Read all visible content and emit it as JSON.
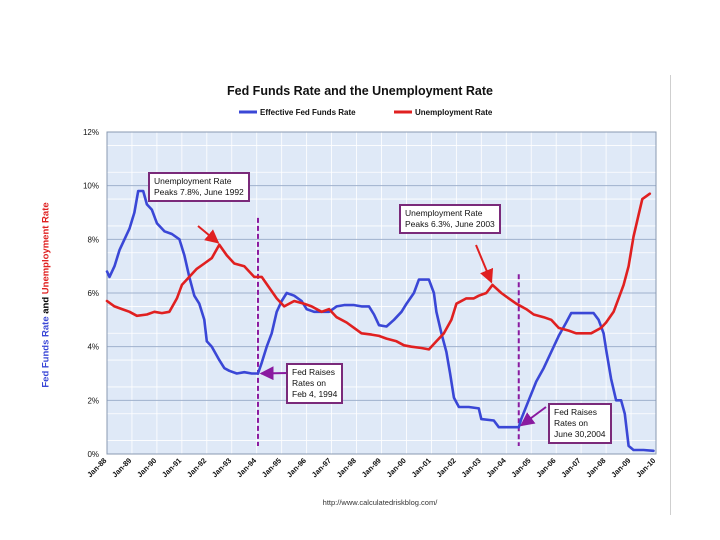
{
  "chart_data": {
    "type": "line",
    "title": "Fed Funds Rate and the Unemployment Rate",
    "ylabel": "Fed Funds Rate and Unemployment Rate",
    "ylabel_parts": [
      "Fed Funds Rate",
      " and ",
      "Unemployment Rate"
    ],
    "source": "http://www.calculatedriskblog.com/",
    "ylim": [
      0,
      12
    ],
    "xlim": [
      1988.0,
      2010.0
    ],
    "yticks": [
      {
        "value": 0,
        "label": "0%"
      },
      {
        "value": 2,
        "label": "2%"
      },
      {
        "value": 4,
        "label": "4%"
      },
      {
        "value": 6,
        "label": "6%"
      },
      {
        "value": 8,
        "label": "8%"
      },
      {
        "value": 10,
        "label": "10%"
      },
      {
        "value": 12,
        "label": "12%"
      }
    ],
    "xticks": [
      {
        "value": 1988,
        "label": "Jan-88"
      },
      {
        "value": 1989,
        "label": "Jan-89"
      },
      {
        "value": 1990,
        "label": "Jan-90"
      },
      {
        "value": 1991,
        "label": "Jan-91"
      },
      {
        "value": 1992,
        "label": "Jan-92"
      },
      {
        "value": 1993,
        "label": "Jan-93"
      },
      {
        "value": 1994,
        "label": "Jan-94"
      },
      {
        "value": 1995,
        "label": "Jan-95"
      },
      {
        "value": 1996,
        "label": "Jan-96"
      },
      {
        "value": 1997,
        "label": "Jan-97"
      },
      {
        "value": 1998,
        "label": "Jan-98"
      },
      {
        "value": 1999,
        "label": "Jan-99"
      },
      {
        "value": 2000,
        "label": "Jan-00"
      },
      {
        "value": 2001,
        "label": "Jan-01"
      },
      {
        "value": 2002,
        "label": "Jan-02"
      },
      {
        "value": 2003,
        "label": "Jan-03"
      },
      {
        "value": 2004,
        "label": "Jan-04"
      },
      {
        "value": 2005,
        "label": "Jan-05"
      },
      {
        "value": 2006,
        "label": "Jan-06"
      },
      {
        "value": 2007,
        "label": "Jan-07"
      },
      {
        "value": 2008,
        "label": "Jan-08"
      },
      {
        "value": 2009,
        "label": "Jan-09"
      },
      {
        "value": 2010,
        "label": "Jan-10"
      }
    ],
    "series": [
      {
        "name": "Effective Fed Funds Rate",
        "color": "#3a47d6",
        "points": [
          [
            1988.0,
            6.8
          ],
          [
            1988.1,
            6.6
          ],
          [
            1988.3,
            7.0
          ],
          [
            1988.5,
            7.6
          ],
          [
            1988.7,
            8.0
          ],
          [
            1988.9,
            8.4
          ],
          [
            1989.1,
            9.0
          ],
          [
            1989.25,
            9.8
          ],
          [
            1989.45,
            9.8
          ],
          [
            1989.6,
            9.3
          ],
          [
            1989.8,
            9.1
          ],
          [
            1990.0,
            8.6
          ],
          [
            1990.3,
            8.3
          ],
          [
            1990.6,
            8.2
          ],
          [
            1990.9,
            8.0
          ],
          [
            1991.1,
            7.4
          ],
          [
            1991.3,
            6.6
          ],
          [
            1991.5,
            5.9
          ],
          [
            1991.7,
            5.6
          ],
          [
            1991.9,
            5.0
          ],
          [
            1992.0,
            4.2
          ],
          [
            1992.2,
            4.0
          ],
          [
            1992.5,
            3.5
          ],
          [
            1992.7,
            3.2
          ],
          [
            1992.9,
            3.1
          ],
          [
            1993.2,
            3.0
          ],
          [
            1993.5,
            3.05
          ],
          [
            1993.8,
            3.0
          ],
          [
            1994.05,
            3.0
          ],
          [
            1994.2,
            3.4
          ],
          [
            1994.4,
            4.0
          ],
          [
            1994.6,
            4.5
          ],
          [
            1994.8,
            5.3
          ],
          [
            1995.0,
            5.7
          ],
          [
            1995.2,
            6.0
          ],
          [
            1995.5,
            5.9
          ],
          [
            1995.8,
            5.7
          ],
          [
            1996.0,
            5.4
          ],
          [
            1996.3,
            5.3
          ],
          [
            1996.6,
            5.3
          ],
          [
            1996.9,
            5.3
          ],
          [
            1997.2,
            5.5
          ],
          [
            1997.5,
            5.55
          ],
          [
            1997.9,
            5.55
          ],
          [
            1998.2,
            5.5
          ],
          [
            1998.5,
            5.5
          ],
          [
            1998.7,
            5.2
          ],
          [
            1998.9,
            4.8
          ],
          [
            1999.2,
            4.75
          ],
          [
            1999.5,
            5.0
          ],
          [
            1999.8,
            5.3
          ],
          [
            2000.0,
            5.6
          ],
          [
            2000.3,
            6.0
          ],
          [
            2000.5,
            6.5
          ],
          [
            2000.9,
            6.5
          ],
          [
            2001.1,
            6.0
          ],
          [
            2001.2,
            5.3
          ],
          [
            2001.4,
            4.5
          ],
          [
            2001.6,
            3.8
          ],
          [
            2001.75,
            3.0
          ],
          [
            2001.9,
            2.1
          ],
          [
            2002.1,
            1.75
          ],
          [
            2002.5,
            1.75
          ],
          [
            2002.9,
            1.7
          ],
          [
            2003.0,
            1.3
          ],
          [
            2003.5,
            1.25
          ],
          [
            2003.7,
            1.0
          ],
          [
            2004.0,
            1.0
          ],
          [
            2004.5,
            1.0
          ],
          [
            2004.6,
            1.3
          ],
          [
            2004.9,
            2.0
          ],
          [
            2005.2,
            2.7
          ],
          [
            2005.5,
            3.2
          ],
          [
            2005.8,
            3.8
          ],
          [
            2006.1,
            4.4
          ],
          [
            2006.4,
            4.9
          ],
          [
            2006.6,
            5.25
          ],
          [
            2007.0,
            5.25
          ],
          [
            2007.5,
            5.25
          ],
          [
            2007.7,
            5.0
          ],
          [
            2007.9,
            4.5
          ],
          [
            2008.0,
            3.9
          ],
          [
            2008.2,
            2.8
          ],
          [
            2008.4,
            2.0
          ],
          [
            2008.6,
            2.0
          ],
          [
            2008.75,
            1.5
          ],
          [
            2008.9,
            0.3
          ],
          [
            2009.1,
            0.15
          ],
          [
            2009.5,
            0.15
          ],
          [
            2009.9,
            0.12
          ]
        ]
      },
      {
        "name": "Unemployment Rate",
        "color": "#e02020",
        "points": [
          [
            1988.0,
            5.7
          ],
          [
            1988.3,
            5.5
          ],
          [
            1988.6,
            5.4
          ],
          [
            1988.9,
            5.3
          ],
          [
            1989.2,
            5.15
          ],
          [
            1989.6,
            5.2
          ],
          [
            1989.9,
            5.3
          ],
          [
            1990.2,
            5.25
          ],
          [
            1990.5,
            5.3
          ],
          [
            1990.8,
            5.8
          ],
          [
            1991.0,
            6.3
          ],
          [
            1991.3,
            6.6
          ],
          [
            1991.6,
            6.9
          ],
          [
            1991.9,
            7.1
          ],
          [
            1992.2,
            7.3
          ],
          [
            1992.5,
            7.8
          ],
          [
            1992.8,
            7.4
          ],
          [
            1993.1,
            7.1
          ],
          [
            1993.5,
            7.0
          ],
          [
            1993.9,
            6.6
          ],
          [
            1994.2,
            6.6
          ],
          [
            1994.5,
            6.2
          ],
          [
            1994.8,
            5.8
          ],
          [
            1995.1,
            5.5
          ],
          [
            1995.5,
            5.7
          ],
          [
            1995.9,
            5.6
          ],
          [
            1996.2,
            5.5
          ],
          [
            1996.6,
            5.3
          ],
          [
            1996.9,
            5.4
          ],
          [
            1997.2,
            5.1
          ],
          [
            1997.6,
            4.9
          ],
          [
            1997.9,
            4.7
          ],
          [
            1998.2,
            4.5
          ],
          [
            1998.6,
            4.45
          ],
          [
            1998.9,
            4.4
          ],
          [
            1999.2,
            4.3
          ],
          [
            1999.6,
            4.2
          ],
          [
            1999.9,
            4.05
          ],
          [
            2000.2,
            4.0
          ],
          [
            2000.6,
            3.95
          ],
          [
            2000.9,
            3.9
          ],
          [
            2001.2,
            4.2
          ],
          [
            2001.5,
            4.5
          ],
          [
            2001.8,
            5.0
          ],
          [
            2002.0,
            5.6
          ],
          [
            2002.4,
            5.8
          ],
          [
            2002.7,
            5.8
          ],
          [
            2002.9,
            5.9
          ],
          [
            2003.2,
            6.0
          ],
          [
            2003.45,
            6.3
          ],
          [
            2003.8,
            6.0
          ],
          [
            2004.1,
            5.8
          ],
          [
            2004.4,
            5.6
          ],
          [
            2004.8,
            5.4
          ],
          [
            2005.1,
            5.2
          ],
          [
            2005.5,
            5.1
          ],
          [
            2005.8,
            5.0
          ],
          [
            2006.1,
            4.7
          ],
          [
            2006.5,
            4.6
          ],
          [
            2006.8,
            4.5
          ],
          [
            2007.0,
            4.5
          ],
          [
            2007.4,
            4.5
          ],
          [
            2007.8,
            4.7
          ],
          [
            2008.0,
            4.9
          ],
          [
            2008.3,
            5.3
          ],
          [
            2008.5,
            5.8
          ],
          [
            2008.7,
            6.3
          ],
          [
            2008.9,
            7.0
          ],
          [
            2009.1,
            8.1
          ],
          [
            2009.3,
            8.9
          ],
          [
            2009.45,
            9.5
          ],
          [
            2009.6,
            9.6
          ],
          [
            2009.75,
            9.7
          ]
        ]
      }
    ],
    "vlines": [
      {
        "x": 1994.05,
        "label": "Fed raises Feb 4, 1994",
        "color": "#8a1aa0"
      },
      {
        "x": 2004.5,
        "label": "Fed raises June 30, 2004",
        "color": "#8a1aa0"
      }
    ],
    "annotations": [
      {
        "id": "ann-unemp-1992",
        "text": "Unemployment Rate\nPeaks 7.8%, June 1992",
        "target_x": 1992.55,
        "target_y": 7.8,
        "arrow_color": "#e02020"
      },
      {
        "id": "ann-unemp-2003",
        "text": "Unemployment Rate\nPeaks 6.3%, June 2003",
        "target_x": 2003.45,
        "target_y": 6.3,
        "arrow_color": "#e02020"
      },
      {
        "id": "ann-fed-1994",
        "text": "Fed Raises\nRates on\nFeb 4, 1994",
        "target_x": 1994.05,
        "target_y": 3.0,
        "arrow_color": "#8a1aa0"
      },
      {
        "id": "ann-fed-2004",
        "text": "Fed Raises\nRates on\nJune 30,2004",
        "target_x": 2004.5,
        "target_y": 1.0,
        "arrow_color": "#8a1aa0"
      }
    ],
    "colors": {
      "plot_bg": "#dfe9f7",
      "grid": "#9fb1cd",
      "border": "#8899b0",
      "title_text": "#111111",
      "ylabel_fed": "#3a47d6",
      "ylabel_unemp": "#e02020"
    }
  }
}
